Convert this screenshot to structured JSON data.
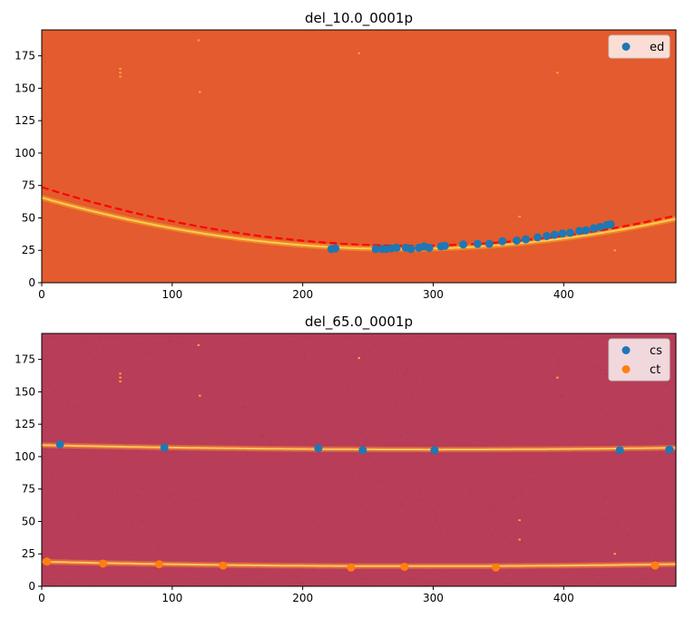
{
  "chart_data": [
    {
      "type": "scatter",
      "title": "del_10.0_0001p",
      "xlabel": "",
      "ylabel": "",
      "xlim": [
        0,
        486
      ],
      "ylim": [
        0,
        195
      ],
      "xticks": [
        0,
        100,
        200,
        300,
        400
      ],
      "yticks": [
        0,
        25,
        50,
        75,
        100,
        125,
        150,
        175
      ],
      "background_color": "#e35b2e",
      "legend_position": "top-right",
      "bright_arcs": [
        {
          "color": "#f5a623",
          "a": 0.000524,
          "x0": 275,
          "y0": 26
        }
      ],
      "fit_lines": [
        {
          "color": "#ff0000",
          "style": "dashed",
          "a": 0.000565,
          "x0": 283,
          "y0": 28.5
        }
      ],
      "hot_pixels": [
        {
          "x": 120,
          "y": 187
        },
        {
          "x": 243,
          "y": 177
        },
        {
          "x": 60,
          "y": 165
        },
        {
          "x": 60,
          "y": 162
        },
        {
          "x": 60,
          "y": 159
        },
        {
          "x": 395,
          "y": 162
        },
        {
          "x": 121,
          "y": 147
        },
        {
          "x": 366,
          "y": 51
        },
        {
          "x": 439,
          "y": 25
        }
      ],
      "series": [
        {
          "name": "ed",
          "color": "#1f77b4",
          "points": [
            [
              222,
              26
            ],
            [
              225,
              26.5
            ],
            [
              256,
              26
            ],
            [
              261,
              26
            ],
            [
              264,
              26
            ],
            [
              268,
              26.5
            ],
            [
              272,
              27
            ],
            [
              279,
              27
            ],
            [
              283,
              26
            ],
            [
              289,
              27
            ],
            [
              293,
              28
            ],
            [
              297,
              27
            ],
            [
              306,
              28
            ],
            [
              309,
              28.5
            ],
            [
              323,
              29.5
            ],
            [
              334,
              30
            ],
            [
              343,
              30
            ],
            [
              353,
              32
            ],
            [
              364,
              32.5
            ],
            [
              371,
              33.5
            ],
            [
              380,
              35
            ],
            [
              387,
              36
            ],
            [
              393,
              37
            ],
            [
              399,
              38
            ],
            [
              405,
              38.5
            ],
            [
              412,
              40
            ],
            [
              417,
              40.5
            ],
            [
              423,
              42
            ],
            [
              428,
              43
            ],
            [
              433,
              44.5
            ],
            [
              436,
              45
            ]
          ]
        }
      ]
    },
    {
      "type": "scatter",
      "title": "del_65.0_0001p",
      "xlabel": "",
      "ylabel": "",
      "xlim": [
        0,
        486
      ],
      "ylim": [
        0,
        195
      ],
      "xticks": [
        0,
        100,
        200,
        300,
        400
      ],
      "yticks": [
        0,
        25,
        50,
        75,
        100,
        125,
        150,
        175
      ],
      "background_color": "#b73d58",
      "legend_position": "top-right",
      "bright_arcs": [
        {
          "color": "#ff8a33",
          "a": 3.75e-05,
          "x0": 300,
          "y0": 105.5
        },
        {
          "color": "#ff8a33",
          "a": 4.15e-05,
          "x0": 290,
          "y0": 15.5
        }
      ],
      "fit_lines": [],
      "hot_pixels": [
        {
          "x": 120,
          "y": 186
        },
        {
          "x": 243,
          "y": 176
        },
        {
          "x": 60,
          "y": 164
        },
        {
          "x": 60,
          "y": 161
        },
        {
          "x": 60,
          "y": 158
        },
        {
          "x": 395,
          "y": 161
        },
        {
          "x": 121,
          "y": 147
        },
        {
          "x": 366,
          "y": 51
        },
        {
          "x": 366,
          "y": 36
        },
        {
          "x": 439,
          "y": 25
        }
      ],
      "series": [
        {
          "name": "cs",
          "color": "#1f77b4",
          "points": [
            [
              14,
              109.5
            ],
            [
              94,
              107
            ],
            [
              212,
              106.5
            ],
            [
              246,
              105
            ],
            [
              301,
              105
            ],
            [
              443,
              105
            ],
            [
              481,
              105.5
            ]
          ]
        },
        {
          "name": "ct",
          "color": "#ff7f0e",
          "points": [
            [
              4,
              19
            ],
            [
              47,
              17.5
            ],
            [
              90,
              17
            ],
            [
              139,
              16
            ],
            [
              237,
              14.5
            ],
            [
              278,
              15
            ],
            [
              348,
              14.5
            ],
            [
              470,
              16
            ]
          ]
        }
      ]
    }
  ]
}
